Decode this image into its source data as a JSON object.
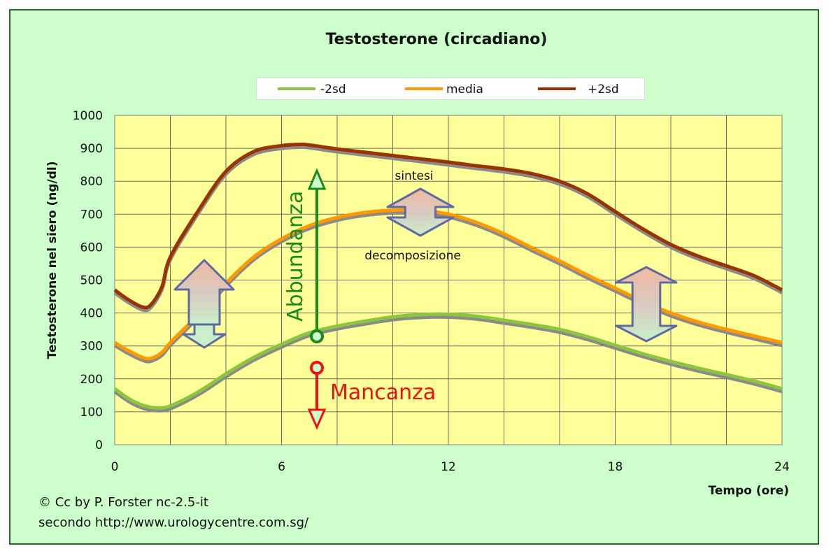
{
  "chart_data": {
    "type": "line",
    "title": "Testosterone (circadiano)",
    "xlabel": "Tempo (ore)",
    "ylabel": "Testosterone nel siero (ng/dl)",
    "xlim": [
      0,
      24
    ],
    "ylim": [
      0,
      1000
    ],
    "xticks": [
      0,
      6,
      12,
      18,
      24
    ],
    "yticks": [
      0,
      100,
      200,
      300,
      400,
      500,
      600,
      700,
      800,
      900,
      1000
    ],
    "grid": true,
    "legend_position": "top",
    "series": [
      {
        "name": "-2sd",
        "color": "#8cc63f",
        "points": [
          [
            0,
            170
          ],
          [
            0.5,
            140
          ],
          [
            1,
            120
          ],
          [
            1.5,
            112
          ],
          [
            2,
            118
          ],
          [
            3,
            160
          ],
          [
            4,
            215
          ],
          [
            5,
            265
          ],
          [
            6,
            305
          ],
          [
            7,
            340
          ],
          [
            8,
            360
          ],
          [
            9,
            375
          ],
          [
            10,
            388
          ],
          [
            11,
            395
          ],
          [
            12,
            396
          ],
          [
            13,
            390
          ],
          [
            14,
            378
          ],
          [
            15,
            365
          ],
          [
            16,
            350
          ],
          [
            17,
            328
          ],
          [
            18,
            302
          ],
          [
            19,
            276
          ],
          [
            20,
            253
          ],
          [
            21,
            232
          ],
          [
            22,
            213
          ],
          [
            23,
            193
          ],
          [
            24,
            170
          ]
        ]
      },
      {
        "name": "media",
        "color": "#ff9900",
        "points": [
          [
            0,
            310
          ],
          [
            0.5,
            285
          ],
          [
            1,
            265
          ],
          [
            1.3,
            262
          ],
          [
            1.7,
            280
          ],
          [
            2,
            310
          ],
          [
            3,
            395
          ],
          [
            4,
            490
          ],
          [
            5,
            570
          ],
          [
            6,
            625
          ],
          [
            7,
            665
          ],
          [
            8,
            690
          ],
          [
            9,
            705
          ],
          [
            10,
            712
          ],
          [
            11,
            712
          ],
          [
            12,
            700
          ],
          [
            13,
            675
          ],
          [
            14,
            640
          ],
          [
            15,
            598
          ],
          [
            16,
            558
          ],
          [
            17,
            515
          ],
          [
            18,
            475
          ],
          [
            19,
            435
          ],
          [
            20,
            400
          ],
          [
            21,
            372
          ],
          [
            22,
            350
          ],
          [
            23,
            330
          ],
          [
            24,
            310
          ]
        ]
      },
      {
        "name": "+2sd",
        "color": "#993300",
        "points": [
          [
            0,
            470
          ],
          [
            0.5,
            440
          ],
          [
            1,
            418
          ],
          [
            1.3,
            425
          ],
          [
            1.7,
            480
          ],
          [
            2,
            570
          ],
          [
            3,
            710
          ],
          [
            4,
            830
          ],
          [
            5,
            890
          ],
          [
            6,
            908
          ],
          [
            6.7,
            912
          ],
          [
            7,
            910
          ],
          [
            8,
            898
          ],
          [
            9,
            888
          ],
          [
            10,
            878
          ],
          [
            11,
            868
          ],
          [
            12,
            858
          ],
          [
            13,
            847
          ],
          [
            14,
            837
          ],
          [
            15,
            823
          ],
          [
            16,
            800
          ],
          [
            17,
            762
          ],
          [
            18,
            708
          ],
          [
            19,
            655
          ],
          [
            20,
            608
          ],
          [
            21,
            572
          ],
          [
            22,
            543
          ],
          [
            23,
            513
          ],
          [
            24,
            470
          ]
        ]
      }
    ],
    "annotations": {
      "abbundanza": "Abbundanza",
      "mancanza": "Mancanza",
      "sintesi": "sintesi",
      "decomposizione": "decomposizione"
    }
  },
  "credits": {
    "line1": "© Cc by P. Forster nc-2.5-it",
    "line2": "secondo http://www.urologycentre.com.sg/"
  }
}
